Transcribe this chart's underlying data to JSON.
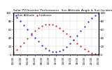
{
  "title": "Solar PV/Inverter Performance  Sun Altitude Angle & Sun Incidence Angle on PV Panels",
  "legend1": "Sun Altitude",
  "legend2": "Incidence",
  "blue_x": [
    0,
    1,
    2,
    3,
    4,
    5,
    6,
    7,
    8,
    9,
    10,
    11,
    12,
    13,
    14,
    15,
    16,
    17,
    18,
    19,
    20,
    21,
    22,
    23,
    24
  ],
  "blue_y": [
    95,
    88,
    80,
    70,
    60,
    50,
    40,
    31,
    22,
    15,
    10,
    7,
    6,
    8,
    12,
    18,
    26,
    35,
    45,
    56,
    67,
    78,
    87,
    93,
    97
  ],
  "red_x": [
    0,
    1,
    2,
    3,
    4,
    5,
    6,
    7,
    8,
    9,
    10,
    11,
    12,
    13,
    14,
    15,
    16,
    17,
    18,
    19,
    20,
    21,
    22,
    23,
    24
  ],
  "red_y": [
    5,
    12,
    20,
    29,
    38,
    47,
    56,
    63,
    68,
    71,
    72,
    71,
    68,
    63,
    57,
    50,
    43,
    35,
    27,
    20,
    13,
    8,
    4,
    2,
    1
  ],
  "ylim_left": [
    0,
    100
  ],
  "ylim_right": [
    0,
    100
  ],
  "xlim": [
    0,
    24
  ],
  "yticks_left": [
    0,
    20,
    40,
    60,
    80,
    100
  ],
  "yticks_right": [
    0,
    20,
    40,
    60,
    80,
    100
  ],
  "blue_color": "#0000cc",
  "red_color": "#cc0000",
  "background_color": "#ffffff",
  "grid_color": "#999999",
  "title_fontsize": 3.2,
  "tick_fontsize": 2.8,
  "legend_fontsize": 2.8,
  "marker_size": 1.0,
  "x_tick_positions": [
    0,
    2,
    4,
    6,
    8,
    10,
    12,
    14,
    16,
    18,
    20,
    22,
    24
  ],
  "x_tick_labels": [
    "00:00",
    "02:00",
    "04:00",
    "06:00",
    "08:00",
    "10:00",
    "12:00",
    "14:00",
    "16:00",
    "18:00",
    "20:00",
    "22:00",
    "24:00"
  ]
}
